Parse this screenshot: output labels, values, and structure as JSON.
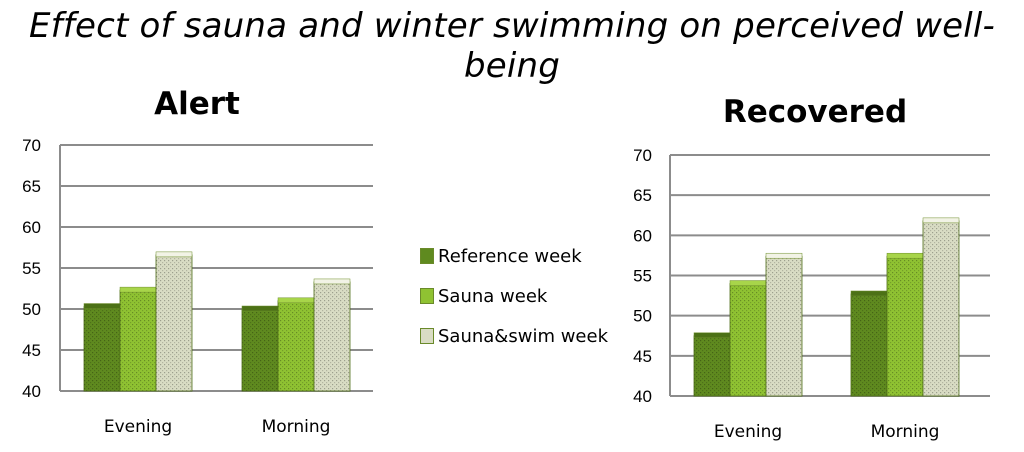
{
  "title": "Effect of sauna and winter swimming on perceived well-being",
  "legend": {
    "items": [
      {
        "label": "Reference week",
        "color": "#5f8a1f"
      },
      {
        "label": "Sauna week",
        "color": "#8fc232"
      },
      {
        "label": "Sauna&swim week",
        "color": "#d9dcc4"
      }
    ]
  },
  "chart_data": [
    {
      "type": "bar",
      "title": "Alert",
      "categories": [
        "Evening",
        "Morning"
      ],
      "ylim": [
        40,
        70
      ],
      "yticks": [
        40,
        45,
        50,
        55,
        60,
        65,
        70
      ],
      "grid": true,
      "legend_position": "right",
      "series": [
        {
          "name": "Reference week",
          "values": [
            50.3,
            50.0
          ]
        },
        {
          "name": "Sauna week",
          "values": [
            52.3,
            51.0
          ]
        },
        {
          "name": "Sauna&swim week",
          "values": [
            56.6,
            53.3
          ]
        }
      ]
    },
    {
      "type": "bar",
      "title": "Recovered",
      "categories": [
        "Evening",
        "Morning"
      ],
      "ylim": [
        40,
        70
      ],
      "yticks": [
        40,
        45,
        50,
        55,
        60,
        65,
        70
      ],
      "grid": true,
      "legend_position": "left",
      "series": [
        {
          "name": "Reference week",
          "values": [
            47.5,
            52.7
          ]
        },
        {
          "name": "Sauna week",
          "values": [
            54.0,
            57.4
          ]
        },
        {
          "name": "Sauna&swim week",
          "values": [
            57.4,
            61.8
          ]
        }
      ]
    }
  ]
}
